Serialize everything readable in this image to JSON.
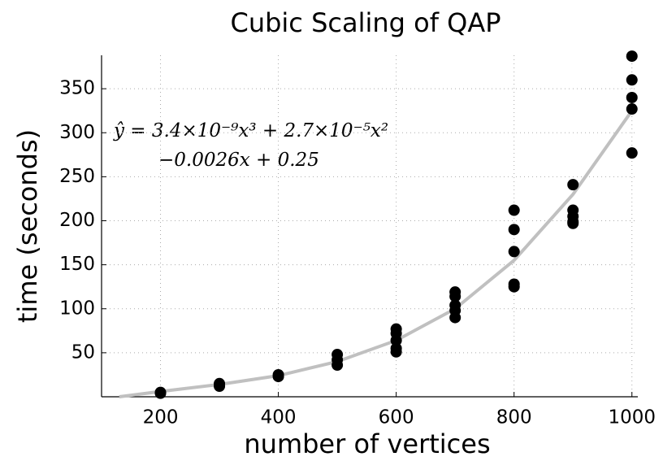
{
  "chart_data": {
    "type": "scatter",
    "title": "Cubic Scaling of QAP",
    "x_label": "number of vertices",
    "y_label": "time (seconds)",
    "annotations": [
      "ŷ = 3.4×10⁻⁹x³ + 2.7×10⁻⁵x²",
      "−0.0026x + 0.25"
    ],
    "xlim": [
      100,
      1010
    ],
    "ylim": [
      0,
      388
    ],
    "xticks": [
      200,
      400,
      600,
      800,
      1000
    ],
    "yticks": [
      50,
      100,
      150,
      200,
      250,
      300,
      350
    ],
    "grid": true,
    "series": [
      {
        "type": "scatter",
        "color": "#000000",
        "x": [
          200,
          200,
          300,
          300,
          400,
          400,
          500,
          500,
          500,
          600,
          600,
          600,
          600,
          600,
          700,
          700,
          700,
          700,
          700,
          800,
          800,
          800,
          800,
          800,
          900,
          900,
          900,
          900,
          900,
          1000,
          1000,
          1000,
          1000,
          1000
        ],
        "values": [
          5,
          4,
          15,
          12,
          25,
          23,
          48,
          42,
          36,
          77,
          72,
          64,
          55,
          51,
          119,
          114,
          104,
          98,
          90,
          212,
          190,
          165,
          128,
          125,
          241,
          212,
          205,
          199,
          197,
          387,
          360,
          340,
          327,
          277
        ]
      },
      {
        "type": "line",
        "color": "#c0c0c0",
        "x": [
          130,
          200,
          300,
          400,
          500,
          600,
          700,
          800,
          900,
          1000
        ],
        "values": [
          0,
          6,
          14,
          24,
          40,
          64,
          100,
          155,
          230,
          325
        ]
      }
    ]
  }
}
